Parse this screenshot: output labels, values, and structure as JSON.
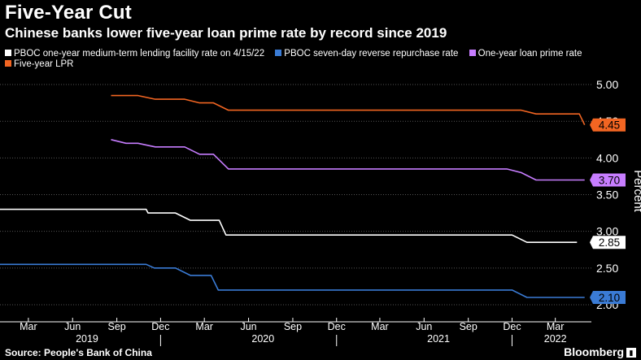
{
  "title": "Five-Year Cut",
  "subtitle": "Chinese banks lower five-year loan prime rate by record since 2019",
  "source": "Source: People's Bank of China",
  "brand": "Bloomberg",
  "chart_data": {
    "type": "line",
    "ylabel": "Percent",
    "ylim": [
      2.0,
      5.1
    ],
    "yticks": [
      2.0,
      2.5,
      3.0,
      3.5,
      4.0,
      4.5,
      5.0
    ],
    "ytick_labels": [
      "2.00",
      "2.50",
      "3.00",
      "3.50",
      "4.00",
      "4.50",
      "5.00"
    ],
    "xlim": [
      "2019-01-01",
      "2022-05-15"
    ],
    "x_month_ticks": [
      {
        "date": "2019-03-01",
        "label": "Mar"
      },
      {
        "date": "2019-06-01",
        "label": "Jun"
      },
      {
        "date": "2019-09-01",
        "label": "Sep"
      },
      {
        "date": "2019-12-01",
        "label": "Dec"
      },
      {
        "date": "2020-03-01",
        "label": "Mar"
      },
      {
        "date": "2020-06-01",
        "label": "Jun"
      },
      {
        "date": "2020-09-01",
        "label": "Sep"
      },
      {
        "date": "2020-12-01",
        "label": "Dec"
      },
      {
        "date": "2021-03-01",
        "label": "Mar"
      },
      {
        "date": "2021-06-01",
        "label": "Jun"
      },
      {
        "date": "2021-09-01",
        "label": "Sep"
      },
      {
        "date": "2021-12-01",
        "label": "Dec"
      },
      {
        "date": "2022-03-01",
        "label": "Mar"
      }
    ],
    "x_year_labels": [
      {
        "date": "2019-07-01",
        "label": "2019"
      },
      {
        "date": "2020-07-01",
        "label": "2020"
      },
      {
        "date": "2021-07-01",
        "label": "2021"
      },
      {
        "date": "2022-03-01",
        "label": "2022"
      }
    ],
    "x_year_separators": [
      "2019-12-01",
      "2020-12-01",
      "2021-12-01"
    ],
    "grid": true,
    "legend_position": "top-left",
    "series": [
      {
        "name": "PBOC one-year medium-term lending facility rate on 4/15/22",
        "color": "#ffffff",
        "end_label": "2.85",
        "points": [
          [
            "2019-01-01",
            3.3
          ],
          [
            "2019-11-01",
            3.3
          ],
          [
            "2019-11-05",
            3.25
          ],
          [
            "2020-01-01",
            3.25
          ],
          [
            "2020-02-01",
            3.15
          ],
          [
            "2020-04-01",
            3.15
          ],
          [
            "2020-04-15",
            2.95
          ],
          [
            "2021-12-01",
            2.95
          ],
          [
            "2022-01-01",
            2.85
          ],
          [
            "2022-04-15",
            2.85
          ]
        ]
      },
      {
        "name": "PBOC seven-day reverse repurchase rate",
        "color": "#3a7bd5",
        "end_label": "2.10",
        "points": [
          [
            "2018-11-01",
            2.55
          ],
          [
            "2019-11-01",
            2.55
          ],
          [
            "2019-11-18",
            2.5
          ],
          [
            "2020-01-01",
            2.5
          ],
          [
            "2020-02-01",
            2.4
          ],
          [
            "2020-03-15",
            2.4
          ],
          [
            "2020-03-30",
            2.2
          ],
          [
            "2021-12-01",
            2.2
          ],
          [
            "2022-01-01",
            2.1
          ],
          [
            "2022-05-01",
            2.1
          ]
        ]
      },
      {
        "name": "One-year loan prime rate",
        "color": "#c77dff",
        "end_label": "3.70",
        "points": [
          [
            "2019-08-20",
            4.25
          ],
          [
            "2019-09-20",
            4.2
          ],
          [
            "2019-10-15",
            4.2
          ],
          [
            "2019-11-20",
            4.15
          ],
          [
            "2020-01-20",
            4.15
          ],
          [
            "2020-02-20",
            4.05
          ],
          [
            "2020-03-20",
            4.05
          ],
          [
            "2020-04-20",
            3.85
          ],
          [
            "2021-11-20",
            3.85
          ],
          [
            "2021-12-20",
            3.8
          ],
          [
            "2022-01-20",
            3.7
          ],
          [
            "2022-05-01",
            3.7
          ]
        ]
      },
      {
        "name": "Five-year LPR",
        "color": "#f26522",
        "end_label": "4.45",
        "points": [
          [
            "2019-08-20",
            4.85
          ],
          [
            "2019-10-15",
            4.85
          ],
          [
            "2019-11-20",
            4.8
          ],
          [
            "2020-01-20",
            4.8
          ],
          [
            "2020-02-20",
            4.75
          ],
          [
            "2020-03-20",
            4.75
          ],
          [
            "2020-04-20",
            4.65
          ],
          [
            "2021-12-20",
            4.65
          ],
          [
            "2022-01-20",
            4.6
          ],
          [
            "2022-04-20",
            4.6
          ],
          [
            "2022-05-01",
            4.45
          ]
        ]
      }
    ]
  }
}
